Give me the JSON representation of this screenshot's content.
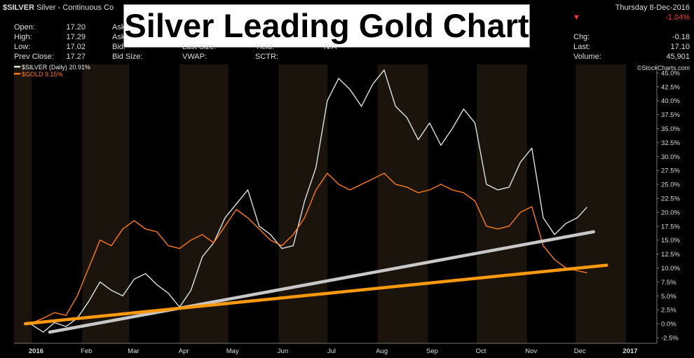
{
  "header": {
    "symbol": "$SILVER",
    "description": "Silver - Continuous Co",
    "date": "Thursday  8-Dec-2016",
    "change_pct": "-1.04%",
    "watermark": "©StockCharts.com",
    "left_stats": [
      {
        "label": "Open:",
        "value": "17.20"
      },
      {
        "label": "High:",
        "value": "17.29"
      },
      {
        "label": "Low:",
        "value": "17.02"
      },
      {
        "label": "Prev Close:",
        "value": "17.27"
      }
    ],
    "mid_labels": [
      "Ask:",
      "Ask",
      "Bid:",
      "Bid Size:"
    ],
    "col3_labels": [
      "Last Size:",
      "VWAP:"
    ],
    "col4_labels": [
      "Yield:",
      "SCTR:"
    ],
    "col5_value": "N/A",
    "right_stats": [
      {
        "label": "Chg:",
        "value": "-0.18"
      },
      {
        "label": "Last:",
        "value": "17.10"
      },
      {
        "label": "Volume:",
        "value": "45,901"
      }
    ]
  },
  "title": "Silver Leading Gold Chart",
  "colors": {
    "silver": "#d8e4e4",
    "gold": "#ff7a1a",
    "silver_trend": "#c8c8c8",
    "gold_trend": "#ff9a10",
    "band": "#1a140c"
  },
  "chart_data": {
    "type": "line",
    "y_unit": "%",
    "ylim": [
      -3.5,
      46.5
    ],
    "y_ticks": [
      "45.0%",
      "42.5%",
      "40.0%",
      "37.5%",
      "35.0%",
      "32.5%",
      "30.0%",
      "27.5%",
      "25.0%",
      "22.5%",
      "20.0%",
      "17.5%",
      "15.0%",
      "12.5%",
      "10.0%",
      "7.5%",
      "5.0%",
      "2.5%",
      "0.0%",
      "-2.5%"
    ],
    "x_ticks": [
      "2016",
      "Feb",
      "Mar",
      "Apr",
      "May",
      "Jun",
      "Jul",
      "Aug",
      "Sep",
      "Oct",
      "Nov",
      "Dec",
      "2017"
    ],
    "series": [
      {
        "name": "$SILVER (Daily) 20.91%",
        "x": [
          "2015-12-31",
          "2016-01-08",
          "2016-01-15",
          "2016-01-22",
          "2016-01-29",
          "2016-02-05",
          "2016-02-12",
          "2016-02-19",
          "2016-02-26",
          "2016-03-04",
          "2016-03-11",
          "2016-03-18",
          "2016-03-25",
          "2016-04-01",
          "2016-04-08",
          "2016-04-15",
          "2016-04-22",
          "2016-04-29",
          "2016-05-06",
          "2016-05-13",
          "2016-05-20",
          "2016-05-27",
          "2016-06-03",
          "2016-06-10",
          "2016-06-17",
          "2016-06-24",
          "2016-07-01",
          "2016-07-08",
          "2016-07-15",
          "2016-07-22",
          "2016-07-29",
          "2016-08-05",
          "2016-08-12",
          "2016-08-19",
          "2016-08-26",
          "2016-09-02",
          "2016-09-09",
          "2016-09-16",
          "2016-09-23",
          "2016-09-30",
          "2016-10-07",
          "2016-10-14",
          "2016-10-21",
          "2016-10-28",
          "2016-11-04",
          "2016-11-11",
          "2016-11-18",
          "2016-11-25",
          "2016-12-02",
          "2016-12-08"
        ],
        "values": [
          0.0,
          -1.5,
          0.2,
          -0.5,
          1.0,
          4.0,
          7.5,
          6.0,
          5.0,
          8.0,
          9.0,
          7.0,
          5.5,
          3.0,
          6.0,
          12.0,
          14.5,
          19.0,
          21.5,
          24.0,
          17.5,
          16.0,
          13.5,
          14.0,
          22.0,
          28.0,
          40.0,
          44.0,
          42.0,
          39.0,
          43.0,
          45.5,
          39.0,
          37.0,
          33.0,
          36.0,
          32.0,
          35.0,
          38.5,
          36.0,
          25.0,
          24.0,
          24.5,
          29.0,
          31.5,
          19.0,
          16.0,
          18.0,
          19.0,
          20.91
        ]
      },
      {
        "name": "$GOLD 9.15%",
        "x": [
          "2015-12-31",
          "2016-01-08",
          "2016-01-15",
          "2016-01-22",
          "2016-01-29",
          "2016-02-05",
          "2016-02-12",
          "2016-02-19",
          "2016-02-26",
          "2016-03-04",
          "2016-03-11",
          "2016-03-18",
          "2016-03-25",
          "2016-04-01",
          "2016-04-08",
          "2016-04-15",
          "2016-04-22",
          "2016-04-29",
          "2016-05-06",
          "2016-05-13",
          "2016-05-20",
          "2016-05-27",
          "2016-06-03",
          "2016-06-10",
          "2016-06-17",
          "2016-06-24",
          "2016-07-01",
          "2016-07-08",
          "2016-07-15",
          "2016-07-22",
          "2016-07-29",
          "2016-08-05",
          "2016-08-12",
          "2016-08-19",
          "2016-08-26",
          "2016-09-02",
          "2016-09-09",
          "2016-09-16",
          "2016-09-23",
          "2016-09-30",
          "2016-10-07",
          "2016-10-14",
          "2016-10-21",
          "2016-10-28",
          "2016-11-04",
          "2016-11-11",
          "2016-11-18",
          "2016-11-25",
          "2016-12-02",
          "2016-12-08"
        ],
        "values": [
          0.0,
          1.0,
          2.0,
          1.5,
          5.0,
          10.0,
          15.0,
          14.0,
          17.0,
          18.5,
          17.0,
          16.5,
          14.0,
          13.5,
          15.0,
          16.0,
          14.5,
          17.5,
          20.5,
          19.0,
          17.0,
          15.0,
          14.0,
          16.0,
          19.0,
          24.0,
          27.0,
          25.0,
          24.0,
          25.0,
          26.0,
          27.0,
          25.0,
          24.5,
          23.5,
          24.0,
          25.0,
          24.0,
          23.5,
          22.0,
          17.5,
          17.0,
          17.5,
          20.0,
          21.0,
          14.0,
          11.5,
          10.0,
          9.5,
          9.15
        ]
      }
    ],
    "trendlines": [
      {
        "series": "$SILVER",
        "from": [
          "2016-01-12",
          -1.5
        ],
        "to": [
          "2016-12-12",
          16.5
        ]
      },
      {
        "series": "$GOLD",
        "from": [
          "2015-12-28",
          0.0
        ],
        "to": [
          "2016-12-20",
          10.5
        ]
      }
    ],
    "grid": false,
    "legend_position": "top-left"
  }
}
